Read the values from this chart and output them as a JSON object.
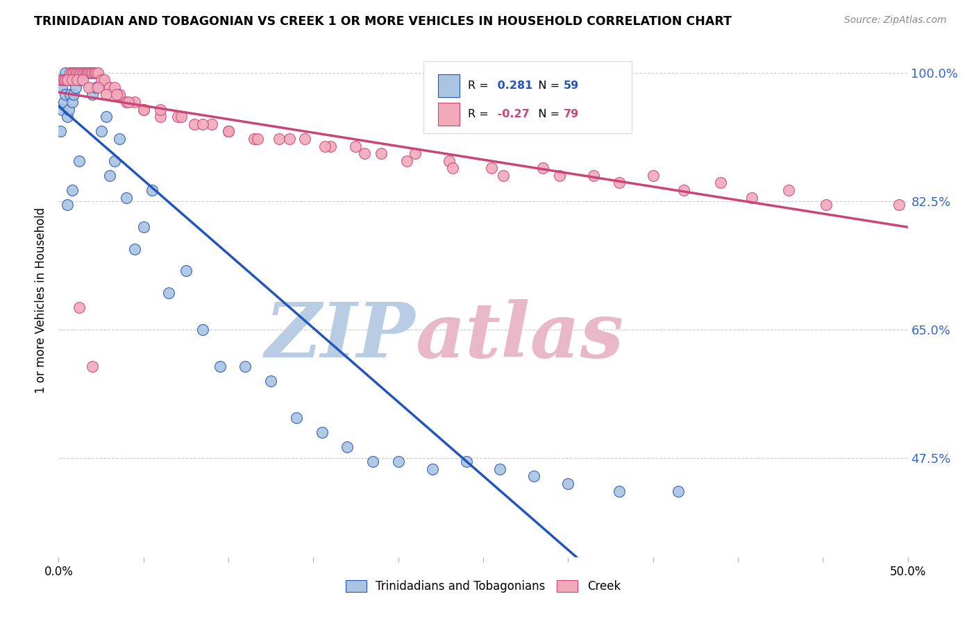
{
  "title": "TRINIDADIAN AND TOBAGONIAN VS CREEK 1 OR MORE VEHICLES IN HOUSEHOLD CORRELATION CHART",
  "source": "Source: ZipAtlas.com",
  "ylabel": "1 or more Vehicles in Household",
  "ytick_labels": [
    "100.0%",
    "82.5%",
    "65.0%",
    "47.5%"
  ],
  "ytick_values": [
    1.0,
    0.825,
    0.65,
    0.475
  ],
  "xlim": [
    0.0,
    0.5
  ],
  "ylim": [
    0.34,
    1.04
  ],
  "legend_blue_label": "Trinidadians and Tobagonians",
  "legend_pink_label": "Creek",
  "r_blue": 0.281,
  "n_blue": 59,
  "r_pink": -0.27,
  "n_pink": 79,
  "blue_color": "#aac4e2",
  "pink_color": "#f2aabb",
  "line_blue": "#2255bb",
  "line_pink": "#cc4477",
  "blue_x": [
    0.001,
    0.002,
    0.002,
    0.003,
    0.003,
    0.004,
    0.004,
    0.005,
    0.005,
    0.006,
    0.006,
    0.007,
    0.007,
    0.008,
    0.008,
    0.009,
    0.009,
    0.01,
    0.01,
    0.011,
    0.012,
    0.013,
    0.014,
    0.015,
    0.016,
    0.017,
    0.018,
    0.02,
    0.022,
    0.025,
    0.028,
    0.03,
    0.033,
    0.036,
    0.04,
    0.045,
    0.05,
    0.055,
    0.065,
    0.075,
    0.085,
    0.095,
    0.11,
    0.125,
    0.14,
    0.155,
    0.17,
    0.185,
    0.2,
    0.22,
    0.24,
    0.26,
    0.28,
    0.3,
    0.33,
    0.365,
    0.005,
    0.008,
    0.012
  ],
  "blue_y": [
    0.92,
    0.95,
    0.98,
    0.96,
    0.99,
    0.97,
    1.0,
    0.94,
    0.99,
    0.95,
    0.99,
    0.97,
    1.0,
    0.96,
    0.99,
    0.97,
    1.0,
    0.98,
    1.0,
    0.99,
    1.0,
    0.99,
    1.0,
    1.0,
    1.0,
    1.0,
    1.0,
    0.97,
    0.98,
    0.92,
    0.94,
    0.86,
    0.88,
    0.91,
    0.83,
    0.76,
    0.79,
    0.84,
    0.7,
    0.73,
    0.65,
    0.6,
    0.6,
    0.58,
    0.53,
    0.51,
    0.49,
    0.47,
    0.47,
    0.46,
    0.47,
    0.46,
    0.45,
    0.44,
    0.43,
    0.43,
    0.82,
    0.84,
    0.88
  ],
  "pink_x": [
    0.001,
    0.002,
    0.003,
    0.004,
    0.005,
    0.006,
    0.007,
    0.008,
    0.009,
    0.01,
    0.011,
    0.012,
    0.013,
    0.014,
    0.015,
    0.016,
    0.017,
    0.018,
    0.019,
    0.02,
    0.021,
    0.022,
    0.023,
    0.025,
    0.027,
    0.03,
    0.033,
    0.036,
    0.04,
    0.045,
    0.05,
    0.06,
    0.07,
    0.08,
    0.09,
    0.1,
    0.115,
    0.13,
    0.145,
    0.16,
    0.175,
    0.19,
    0.21,
    0.23,
    0.255,
    0.285,
    0.315,
    0.35,
    0.39,
    0.43,
    0.005,
    0.008,
    0.011,
    0.014,
    0.018,
    0.023,
    0.028,
    0.034,
    0.041,
    0.05,
    0.06,
    0.072,
    0.085,
    0.1,
    0.117,
    0.136,
    0.157,
    0.18,
    0.205,
    0.232,
    0.262,
    0.295,
    0.33,
    0.368,
    0.408,
    0.452,
    0.495,
    0.012,
    0.02
  ],
  "pink_y": [
    0.99,
    0.99,
    0.99,
    0.99,
    0.99,
    0.99,
    1.0,
    1.0,
    1.0,
    1.0,
    1.0,
    1.0,
    1.0,
    1.0,
    1.0,
    1.0,
    1.0,
    1.0,
    1.0,
    1.0,
    1.0,
    1.0,
    1.0,
    0.99,
    0.99,
    0.98,
    0.98,
    0.97,
    0.96,
    0.96,
    0.95,
    0.94,
    0.94,
    0.93,
    0.93,
    0.92,
    0.91,
    0.91,
    0.91,
    0.9,
    0.9,
    0.89,
    0.89,
    0.88,
    0.87,
    0.87,
    0.86,
    0.86,
    0.85,
    0.84,
    0.99,
    0.99,
    0.99,
    0.99,
    0.98,
    0.98,
    0.97,
    0.97,
    0.96,
    0.95,
    0.95,
    0.94,
    0.93,
    0.92,
    0.91,
    0.91,
    0.9,
    0.89,
    0.88,
    0.87,
    0.86,
    0.86,
    0.85,
    0.84,
    0.83,
    0.82,
    0.82,
    0.68,
    0.6
  ]
}
